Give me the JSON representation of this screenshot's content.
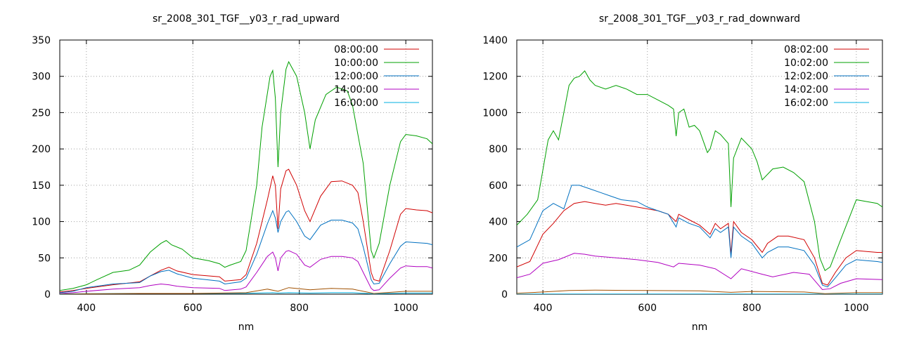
{
  "chart_data": [
    {
      "type": "line",
      "title": "sr_2008_301_TGF__y03_r_rad_upward",
      "xlabel": "nm",
      "ylabel": "",
      "xlim": [
        350,
        1050
      ],
      "ylim": [
        0,
        350
      ],
      "xticks": [
        400,
        600,
        800,
        1000
      ],
      "yticks": [
        0,
        50,
        100,
        150,
        200,
        250,
        300,
        350
      ],
      "grid": true,
      "legend_position": "top-right",
      "series": [
        {
          "name": "08:00:00",
          "color": "#d00000",
          "x": [
            350,
            375,
            400,
            450,
            500,
            520,
            540,
            555,
            570,
            600,
            650,
            660,
            690,
            700,
            720,
            740,
            750,
            755,
            760,
            765,
            775,
            780,
            795,
            810,
            820,
            840,
            860,
            880,
            900,
            910,
            920,
            935,
            940,
            950,
            970,
            990,
            1000,
            1020,
            1040,
            1050
          ],
          "y": [
            3,
            5,
            8,
            13,
            17,
            25,
            33,
            37,
            32,
            27,
            24,
            18,
            20,
            27,
            70,
            130,
            163,
            150,
            90,
            145,
            170,
            172,
            150,
            115,
            100,
            135,
            155,
            156,
            150,
            140,
            100,
            30,
            20,
            18,
            60,
            110,
            118,
            116,
            115,
            112
          ]
        },
        {
          "name": "10:00:00",
          "color": "#00a000",
          "x": [
            350,
            375,
            400,
            420,
            450,
            480,
            500,
            520,
            540,
            550,
            560,
            580,
            600,
            630,
            650,
            660,
            670,
            690,
            700,
            720,
            730,
            745,
            750,
            755,
            760,
            765,
            775,
            780,
            795,
            810,
            820,
            830,
            850,
            870,
            890,
            900,
            910,
            920,
            935,
            940,
            950,
            970,
            990,
            1000,
            1020,
            1040,
            1050
          ],
          "y": [
            5,
            8,
            13,
            20,
            30,
            33,
            40,
            58,
            70,
            74,
            68,
            62,
            50,
            46,
            42,
            37,
            40,
            45,
            60,
            150,
            230,
            300,
            308,
            270,
            175,
            250,
            310,
            320,
            300,
            250,
            200,
            240,
            275,
            285,
            280,
            260,
            220,
            180,
            60,
            50,
            70,
            150,
            210,
            220,
            218,
            214,
            207
          ]
        },
        {
          "name": "12:00:00",
          "color": "#0070c0",
          "x": [
            350,
            375,
            400,
            450,
            500,
            520,
            540,
            555,
            570,
            600,
            650,
            660,
            690,
            700,
            720,
            740,
            750,
            755,
            760,
            765,
            775,
            780,
            795,
            810,
            820,
            840,
            860,
            880,
            900,
            910,
            920,
            935,
            940,
            950,
            970,
            990,
            1000,
            1020,
            1040,
            1050
          ],
          "y": [
            2,
            4,
            9,
            14,
            16,
            25,
            31,
            33,
            28,
            22,
            18,
            14,
            17,
            22,
            55,
            97,
            115,
            105,
            85,
            100,
            113,
            115,
            100,
            80,
            75,
            95,
            102,
            102,
            98,
            90,
            65,
            20,
            14,
            15,
            42,
            66,
            72,
            71,
            70,
            68
          ]
        },
        {
          "name": "14:00:00",
          "color": "#b000c0",
          "x": [
            350,
            375,
            400,
            450,
            500,
            520,
            540,
            555,
            570,
            600,
            650,
            660,
            690,
            700,
            720,
            740,
            750,
            755,
            760,
            765,
            775,
            780,
            795,
            810,
            820,
            840,
            860,
            880,
            900,
            910,
            920,
            935,
            940,
            950,
            970,
            990,
            1000,
            1020,
            1040,
            1050
          ],
          "y": [
            1,
            2,
            4,
            7,
            9,
            12,
            14,
            13,
            11,
            9,
            8,
            5,
            7,
            10,
            30,
            52,
            58,
            50,
            32,
            50,
            59,
            60,
            55,
            40,
            37,
            48,
            52,
            52,
            50,
            45,
            30,
            8,
            5,
            6,
            22,
            36,
            39,
            38,
            38,
            36
          ]
        },
        {
          "name": "16:00:00",
          "color": "#00b0e0",
          "x": [
            350,
            400,
            500,
            600,
            700,
            750,
            760,
            780,
            820,
            860,
            900,
            940,
            1000,
            1050
          ],
          "y": [
            0.5,
            0.8,
            1,
            1,
            1.2,
            2,
            1.5,
            2,
            1.5,
            2,
            2,
            0.5,
            1.5,
            1.5
          ]
        },
        {
          "name": "",
          "color": "#a05000",
          "x": [
            350,
            400,
            500,
            600,
            700,
            740,
            760,
            780,
            820,
            860,
            900,
            940,
            1000,
            1050
          ],
          "y": [
            0,
            0.5,
            1,
            1,
            2,
            7,
            4,
            9,
            6,
            8,
            7,
            1,
            4,
            4
          ]
        }
      ]
    },
    {
      "type": "line",
      "title": "sr_2008_301_TGF__y03_r_rad_downward",
      "xlabel": "nm",
      "ylabel": "",
      "xlim": [
        350,
        1050
      ],
      "ylim": [
        0,
        1400
      ],
      "xticks": [
        400,
        600,
        800,
        1000
      ],
      "yticks": [
        0,
        200,
        400,
        600,
        800,
        1000,
        1200,
        1400
      ],
      "grid": true,
      "legend_position": "top-right",
      "series": [
        {
          "name": "08:02:00",
          "color": "#d00000",
          "x": [
            350,
            375,
            400,
            420,
            440,
            460,
            480,
            500,
            520,
            540,
            560,
            580,
            600,
            620,
            640,
            655,
            660,
            680,
            700,
            720,
            730,
            740,
            755,
            760,
            765,
            780,
            800,
            820,
            830,
            850,
            870,
            900,
            920,
            935,
            945,
            960,
            980,
            1000,
            1020,
            1040,
            1050
          ],
          "y": [
            150,
            180,
            330,
            390,
            460,
            500,
            510,
            500,
            490,
            500,
            490,
            480,
            470,
            460,
            440,
            400,
            440,
            410,
            380,
            330,
            390,
            360,
            390,
            220,
            400,
            340,
            300,
            230,
            280,
            320,
            320,
            300,
            200,
            60,
            50,
            120,
            200,
            240,
            235,
            230,
            230
          ]
        },
        {
          "name": "10:02:00",
          "color": "#00a000",
          "x": [
            350,
            370,
            390,
            410,
            420,
            430,
            440,
            450,
            460,
            470,
            480,
            490,
            500,
            520,
            540,
            560,
            580,
            600,
            620,
            640,
            650,
            655,
            660,
            670,
            680,
            690,
            700,
            715,
            720,
            730,
            740,
            755,
            760,
            765,
            780,
            800,
            810,
            820,
            840,
            860,
            880,
            900,
            920,
            930,
            940,
            950,
            970,
            1000,
            1020,
            1040,
            1050
          ],
          "y": [
            380,
            440,
            520,
            850,
            900,
            850,
            1000,
            1150,
            1190,
            1200,
            1230,
            1180,
            1150,
            1130,
            1150,
            1130,
            1100,
            1100,
            1070,
            1040,
            1020,
            870,
            1000,
            1020,
            920,
            930,
            900,
            780,
            800,
            900,
            880,
            830,
            480,
            750,
            860,
            800,
            730,
            630,
            690,
            700,
            670,
            620,
            400,
            200,
            130,
            150,
            300,
            520,
            510,
            500,
            480
          ]
        },
        {
          "name": "12:02:00",
          "color": "#0070c0",
          "x": [
            350,
            375,
            400,
            420,
            440,
            455,
            470,
            490,
            510,
            530,
            550,
            580,
            600,
            620,
            640,
            655,
            660,
            680,
            700,
            720,
            730,
            740,
            755,
            760,
            765,
            780,
            800,
            820,
            830,
            850,
            870,
            900,
            920,
            935,
            945,
            960,
            980,
            1000,
            1020,
            1040,
            1050
          ],
          "y": [
            260,
            300,
            460,
            500,
            470,
            600,
            600,
            580,
            560,
            540,
            520,
            510,
            480,
            460,
            440,
            370,
            420,
            390,
            370,
            310,
            360,
            340,
            370,
            200,
            370,
            320,
            280,
            200,
            230,
            260,
            260,
            240,
            160,
            50,
            40,
            90,
            160,
            190,
            185,
            180,
            175
          ]
        },
        {
          "name": "14:02:00",
          "color": "#b000c0",
          "x": [
            350,
            375,
            400,
            430,
            460,
            480,
            500,
            540,
            580,
            620,
            650,
            660,
            700,
            730,
            760,
            780,
            820,
            840,
            880,
            910,
            935,
            950,
            970,
            1000,
            1050
          ],
          "y": [
            90,
            110,
            170,
            190,
            225,
            220,
            210,
            200,
            190,
            175,
            150,
            170,
            160,
            140,
            85,
            140,
            110,
            95,
            120,
            110,
            25,
            30,
            60,
            85,
            80
          ]
        },
        {
          "name": "16:02:00",
          "color": "#00b0e0",
          "x": [
            350,
            400,
            500,
            600,
            700,
            760,
            800,
            900,
            940,
            1000,
            1050
          ],
          "y": [
            0,
            1,
            1,
            1,
            1,
            1,
            1,
            1,
            1,
            1,
            1
          ]
        },
        {
          "name": "",
          "color": "#a05000",
          "x": [
            350,
            400,
            450,
            500,
            600,
            700,
            760,
            800,
            900,
            940,
            1000,
            1050
          ],
          "y": [
            5,
            12,
            20,
            22,
            20,
            18,
            10,
            15,
            12,
            3,
            8,
            8
          ]
        }
      ]
    }
  ]
}
